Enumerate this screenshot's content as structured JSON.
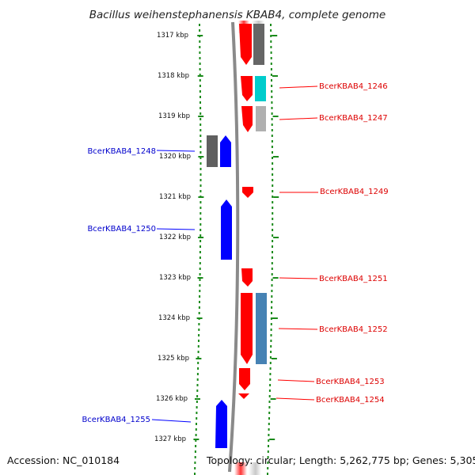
{
  "title": "Bacillus weihenstephanensis KBAB4, complete genome",
  "footer": {
    "accession": "Accession: NC_010184",
    "topology": "Topology: circular; Length: 5,262,775 bp; Genes: 5,305"
  },
  "colors": {
    "forward_cds": "#ff0000",
    "reverse_cds": "#0000ff",
    "tick": "#1a8a1a",
    "backbone": "#8a8a8a"
  },
  "scale_labels": [
    "1317 kbp",
    "1318 kbp",
    "1319 kbp",
    "1320 kbp",
    "1321 kbp",
    "1322 kbp",
    "1323 kbp",
    "1324 kbp",
    "1325 kbp",
    "1326 kbp",
    "1327 kbp"
  ],
  "genes": [
    {
      "label": "BcerKBAB4_1246",
      "strand": "+",
      "cog_color": "#00cccc"
    },
    {
      "label": "BcerKBAB4_1247",
      "strand": "+",
      "cog_color": "#b0b0b0"
    },
    {
      "label": "BcerKBAB4_1248",
      "strand": "-",
      "cog_color": "#606060"
    },
    {
      "label": "BcerKBAB4_1249",
      "strand": "+",
      "cog_color": ""
    },
    {
      "label": "BcerKBAB4_1250",
      "strand": "-",
      "cog_color": ""
    },
    {
      "label": "BcerKBAB4_1251",
      "strand": "+",
      "cog_color": ""
    },
    {
      "label": "BcerKBAB4_1252",
      "strand": "+",
      "cog_color": "#4682b4"
    },
    {
      "label": "BcerKBAB4_1253",
      "strand": "+",
      "cog_color": ""
    },
    {
      "label": "BcerKBAB4_1254",
      "strand": "+",
      "cog_color": ""
    },
    {
      "label": "BcerKBAB4_1255",
      "strand": "-",
      "cog_color": ""
    }
  ]
}
